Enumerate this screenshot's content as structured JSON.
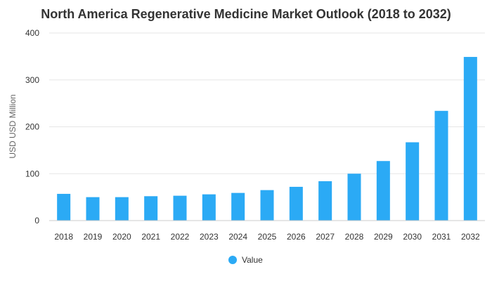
{
  "chart_data": {
    "type": "bar",
    "title": "North America Regenerative Medicine Market Outlook (2018 to 2032)",
    "xlabel": "",
    "ylabel": "USD USD Million",
    "ylim": [
      0,
      400
    ],
    "yticks": [
      0,
      100,
      200,
      300,
      400
    ],
    "grid": true,
    "legend_position": "bottom",
    "categories": [
      "2018",
      "2019",
      "2020",
      "2021",
      "2022",
      "2023",
      "2024",
      "2025",
      "2026",
      "2027",
      "2028",
      "2029",
      "2030",
      "2031",
      "2032"
    ],
    "series": [
      {
        "name": "Value",
        "color": "#2BAAF5",
        "values": [
          57,
          50,
          50,
          52,
          53,
          56,
          59,
          65,
          72,
          84,
          100,
          127,
          167,
          234,
          349
        ]
      }
    ]
  }
}
